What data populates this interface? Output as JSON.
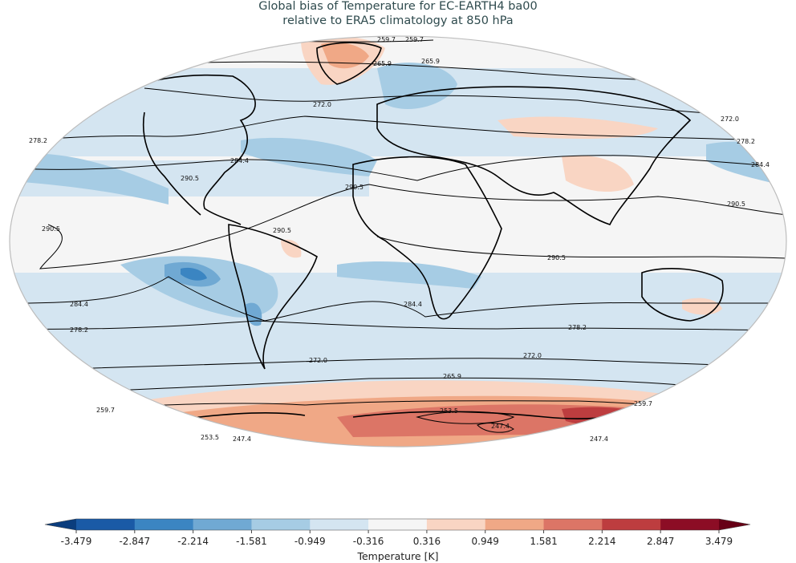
{
  "title_line1": "Global bias of Temperature for EC-EARTH4 ba00",
  "title_line2": "relative to ERA5 climatology at 850 hPa",
  "colorbar": {
    "label": "Temperature [K]",
    "ticks": [
      "-3.479",
      "-2.847",
      "-2.214",
      "-1.581",
      "-0.949",
      "-0.316",
      "0.316",
      "0.949",
      "1.581",
      "2.214",
      "2.847",
      "3.479"
    ],
    "colors": [
      "#1a5aa6",
      "#3b85c2",
      "#70a9d3",
      "#a6cce4",
      "#d4e5f1",
      "#f5f5f5",
      "#f9d5c3",
      "#f0a886",
      "#dc7566",
      "#bd3d3f",
      "#8c0d25"
    ],
    "extend_low_color": "#0b3d7d",
    "extend_high_color": "#670016"
  },
  "contour_labels": [
    "259.7",
    "259.7",
    "265.9",
    "265.9",
    "272.0",
    "272.0",
    "278.2",
    "278.2",
    "284.4",
    "284.4",
    "290.5",
    "290.5",
    "290.5",
    "290.5",
    "290.5",
    "290.5",
    "284.4",
    "284.4",
    "278.2",
    "278.2",
    "272.0",
    "272.0",
    "265.9",
    "259.7",
    "259.7",
    "253.5",
    "247.4",
    "247.4",
    "247.4",
    "253.5"
  ]
}
